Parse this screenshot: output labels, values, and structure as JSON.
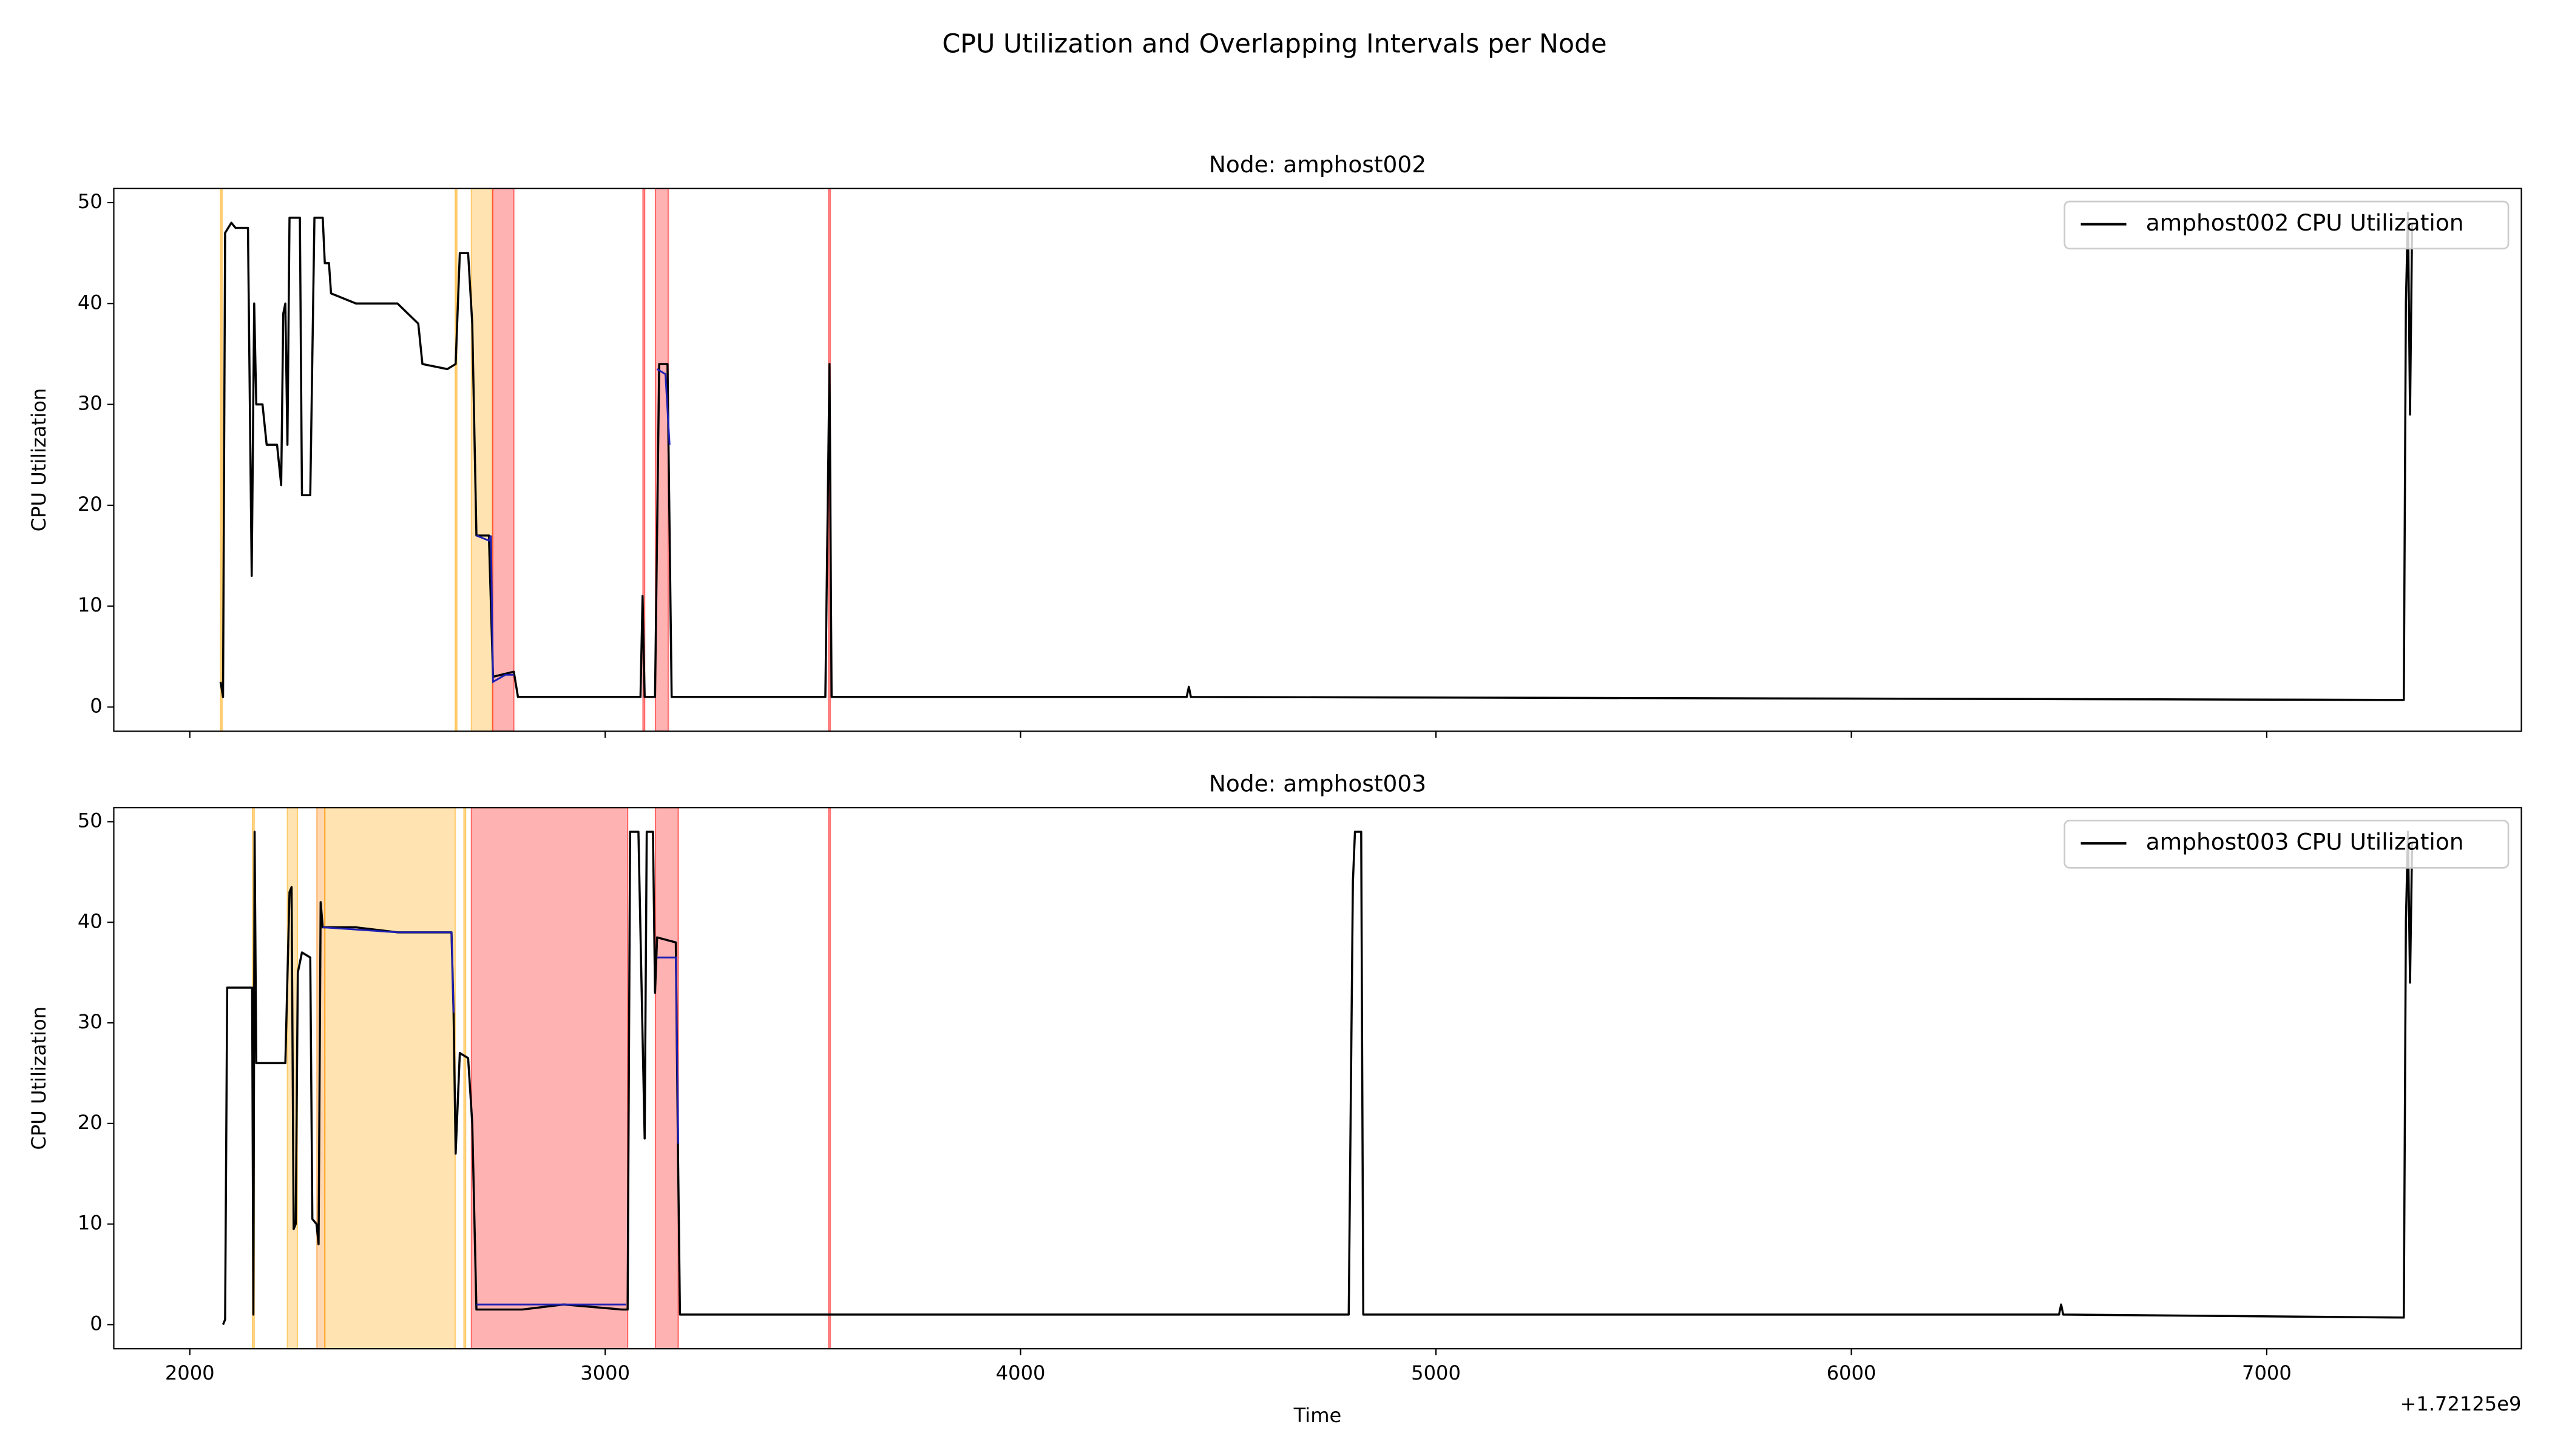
{
  "title": "CPU Utilization and Overlapping Intervals per Node",
  "chart_data": [
    {
      "type": "line",
      "title": "Node: amphost002",
      "ylabel": "CPU Utilization",
      "x": [
        2074,
        2080,
        2085,
        2100,
        2110,
        2140,
        2149,
        2155,
        2160,
        2175,
        2185,
        2210,
        2220,
        2225,
        2230,
        2235,
        2240,
        2265,
        2270,
        2290,
        2300,
        2320,
        2325,
        2335,
        2340,
        2400,
        2500,
        2550,
        2560,
        2620,
        2640,
        2650,
        2670,
        2680,
        2690,
        2720,
        2730,
        2780,
        2790,
        3000,
        3085,
        3090,
        3095,
        3120,
        3130,
        3150,
        3160,
        3530,
        3540,
        3545,
        4400,
        4405,
        4410,
        7330,
        7335,
        7340,
        7345,
        7350
      ],
      "series": [
        {
          "name": "amphost002 CPU Utilization",
          "color": "#000000",
          "values": [
            2.5,
            1,
            47,
            48,
            47.5,
            47.5,
            13,
            40,
            30,
            30,
            26,
            26,
            22,
            39,
            40,
            26,
            48.5,
            48.5,
            21,
            21,
            48.5,
            48.5,
            44,
            44,
            41,
            40,
            40,
            38,
            34,
            33.5,
            34,
            45,
            45,
            38,
            17,
            17,
            3,
            3.5,
            1,
            1,
            1,
            11,
            1,
            1,
            34,
            34,
            1,
            1,
            34,
            1,
            1,
            2,
            1,
            0.7,
            40,
            49,
            29,
            48
          ]
        }
      ],
      "overlay": {
        "color": "#1f1fb4",
        "x": [
          2690,
          2720,
          2725,
          2730,
          2760,
          2780,
          2785,
          3125,
          3145,
          3155
        ],
        "values": [
          17,
          16.5,
          17,
          2.5,
          3.2,
          3.2,
          null,
          33.5,
          33,
          26
        ]
      },
      "intervals": [
        {
          "start": 2074,
          "end": 2078,
          "color": "#ffa500"
        },
        {
          "start": 2639,
          "end": 2643,
          "color": "#ffa500"
        },
        {
          "start": 2678,
          "end": 2729,
          "color": "#ffa500"
        },
        {
          "start": 2729,
          "end": 2780,
          "color": "#ff0000"
        },
        {
          "start": 3091,
          "end": 3095,
          "color": "#ff0000"
        },
        {
          "start": 3121,
          "end": 3152,
          "color": "#ff0000"
        },
        {
          "start": 3538,
          "end": 3542,
          "color": "#ff0000"
        }
      ],
      "xlim": [
        1817,
        7613
      ],
      "ylim": [
        -2.4,
        51.4
      ],
      "xticks": [
        2000,
        3000,
        4000,
        5000,
        6000,
        7000
      ],
      "show_xtick_labels": false,
      "yticks": [
        0,
        10,
        20,
        30,
        40,
        50
      ],
      "legend": "upper right"
    },
    {
      "type": "line",
      "title": "Node: amphost003",
      "ylabel": "CPU Utilization",
      "xlabel": "Time",
      "x_offset_label": "+1.72125e9",
      "x": [
        2080,
        2085,
        2090,
        2150,
        2153,
        2156,
        2160,
        2230,
        2240,
        2245,
        2250,
        2255,
        2260,
        2270,
        2290,
        2295,
        2305,
        2310,
        2315,
        2320,
        2400,
        2500,
        2630,
        2635,
        2640,
        2650,
        2670,
        2680,
        2690,
        2800,
        2900,
        3040,
        3054,
        3060,
        3080,
        3095,
        3100,
        3115,
        3120,
        3125,
        3170,
        3175,
        3180,
        3600,
        4790,
        4800,
        4805,
        4820,
        4825,
        6500,
        6505,
        6510,
        7330,
        7335,
        7340,
        7345,
        7350
      ],
      "series": [
        {
          "name": "amphost003 CPU Utilization",
          "color": "#000000",
          "values": [
            0,
            0.5,
            33.5,
            33.5,
            1,
            49,
            26,
            26,
            43,
            43.5,
            9.5,
            10,
            35,
            37,
            36.5,
            10.5,
            10,
            8,
            42,
            39.5,
            39.5,
            39,
            39,
            31,
            17,
            27,
            26.5,
            20,
            1.5,
            1.5,
            2,
            1.5,
            1.5,
            49,
            49,
            18.5,
            49,
            49,
            33,
            38.5,
            38,
            18,
            1,
            1,
            1,
            44,
            49,
            49,
            1,
            1,
            2,
            1,
            0.7,
            40,
            49,
            34,
            48
          ]
        }
      ],
      "overlay": {
        "color": "#1f1fb4",
        "x": [
          2320,
          2500,
          2630,
          2635,
          2660,
          2690,
          2900,
          3050,
          3100,
          3125,
          3170,
          3176
        ],
        "values": [
          39.5,
          39,
          39,
          31,
          null,
          2,
          2,
          2,
          null,
          36.5,
          36.5,
          18
        ]
      },
      "intervals": [
        {
          "start": 2151,
          "end": 2155,
          "color": "#ffa500"
        },
        {
          "start": 2235,
          "end": 2259,
          "color": "#ffa500"
        },
        {
          "start": 2306,
          "end": 2325,
          "color": "#ff7f00"
        },
        {
          "start": 2325,
          "end": 2639,
          "color": "#ffa500"
        },
        {
          "start": 2660,
          "end": 2664,
          "color": "#ffa500"
        },
        {
          "start": 2678,
          "end": 3054,
          "color": "#ff0000"
        },
        {
          "start": 3121,
          "end": 3176,
          "color": "#ff0000"
        },
        {
          "start": 3538,
          "end": 3542,
          "color": "#ff0000"
        }
      ],
      "xlim": [
        1817,
        7613
      ],
      "ylim": [
        -2.4,
        51.4
      ],
      "xticks": [
        2000,
        3000,
        4000,
        5000,
        6000,
        7000
      ],
      "show_xtick_labels": true,
      "yticks": [
        0,
        10,
        20,
        30,
        40,
        50
      ],
      "legend": "upper right"
    }
  ]
}
